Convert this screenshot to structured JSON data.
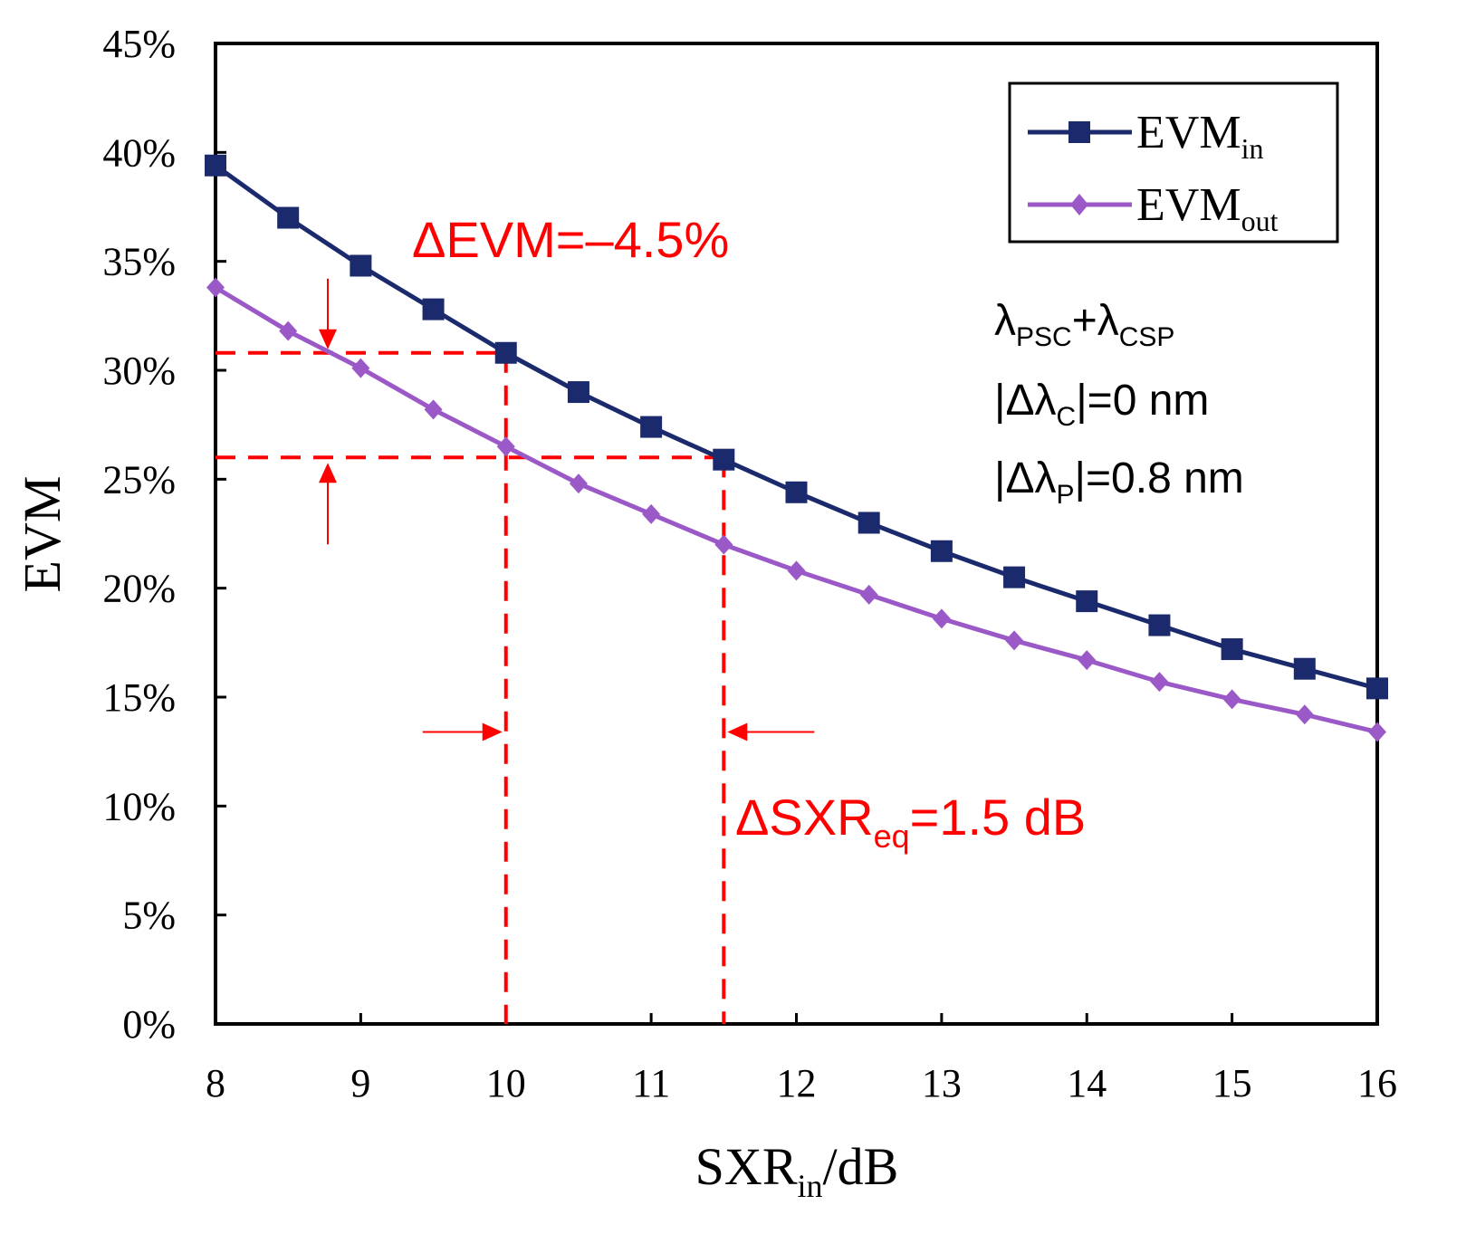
{
  "chart_data": {
    "type": "line",
    "xlabel_main": "SXR",
    "xlabel_sub": "in",
    "xlabel_tail": "/dB",
    "ylabel": "EVM",
    "xlim": [
      8,
      16
    ],
    "ylim": [
      0,
      45
    ],
    "x_ticks": [
      8,
      9,
      10,
      11,
      12,
      13,
      14,
      15,
      16
    ],
    "x_tick_labels": [
      "8",
      "9",
      "10",
      "11",
      "12",
      "13",
      "14",
      "15",
      "16"
    ],
    "y_ticks": [
      0,
      5,
      10,
      15,
      20,
      25,
      30,
      35,
      40,
      45
    ],
    "y_tick_labels": [
      "0%",
      "5%",
      "10%",
      "15%",
      "20%",
      "25%",
      "30%",
      "35%",
      "40%",
      "45%"
    ],
    "x": [
      8,
      8.5,
      9,
      9.5,
      10,
      10.5,
      11,
      11.5,
      12,
      12.5,
      13,
      13.5,
      14,
      14.5,
      15,
      15.5,
      16
    ],
    "series": [
      {
        "name": "EVM_in",
        "legend_main": "EVM",
        "legend_sub": "in",
        "color": "#1a2a6c",
        "marker": "square",
        "values": [
          39.4,
          37.0,
          34.8,
          32.8,
          30.8,
          29.0,
          27.4,
          25.9,
          24.4,
          23.0,
          21.7,
          20.5,
          19.4,
          18.3,
          17.2,
          16.3,
          15.4
        ]
      },
      {
        "name": "EVM_out",
        "legend_main": "EVM",
        "legend_sub": "out",
        "color": "#9b59c8",
        "marker": "diamond",
        "values": [
          33.8,
          31.8,
          30.1,
          28.2,
          26.5,
          24.8,
          23.4,
          22.0,
          20.8,
          19.7,
          18.6,
          17.6,
          16.7,
          15.7,
          14.9,
          14.2,
          13.4
        ]
      }
    ],
    "annotations": {
      "delta_evm": "ΔEVM=–4.5%",
      "delta_sxr_main": "ΔSXR",
      "delta_sxr_sub": "eq",
      "delta_sxr_tail": "=1.5 dB",
      "line1_a": "λ",
      "line1_a_sub": "PSC",
      "line1_b": "+λ",
      "line1_b_sub": "CSP",
      "line2_a": "|Δλ",
      "line2_a_sub": "C",
      "line2_b": "|=0 nm",
      "line3_a": "|Δλ",
      "line3_a_sub": "P",
      "line3_b": "|=0.8 nm"
    },
    "guides": {
      "evm_upper": 30.8,
      "evm_lower": 26.0,
      "sxr_left": 10,
      "sxr_right": 11.5,
      "color": "#ff0000"
    }
  }
}
